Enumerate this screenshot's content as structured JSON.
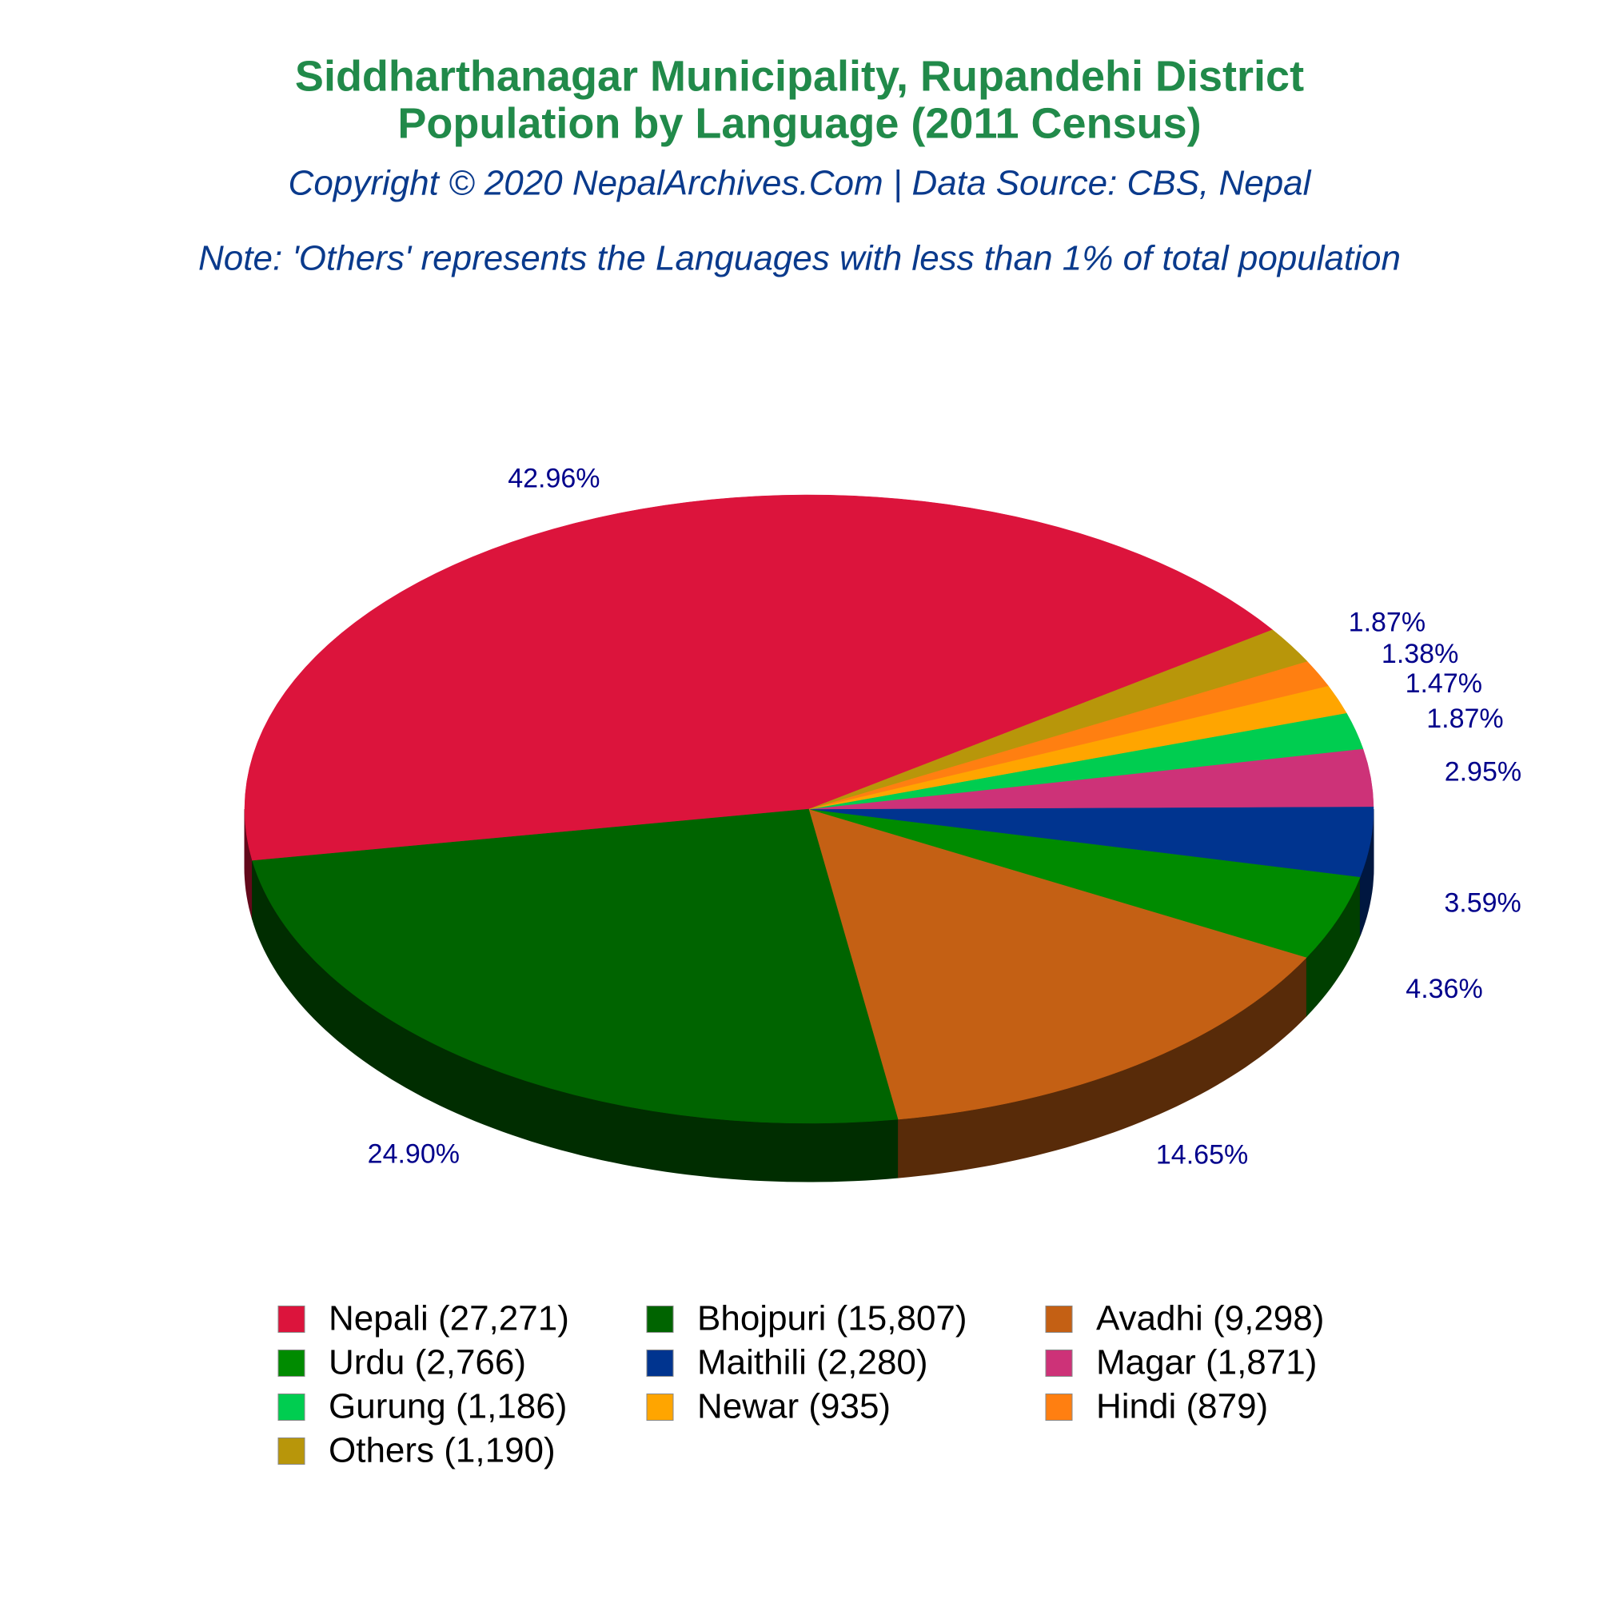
{
  "chart_data": {
    "type": "pie3d",
    "title": "Siddharthanagar Municipality, Rupandehi District",
    "subtitle": "Population by Language (2011 Census)",
    "source": "Copyright © 2020 NepalArchives.Com | Data Source: CBS, Nepal",
    "note": "Note: 'Others' represents the Languages with less than 1% of total population",
    "categories": [
      "Nepali (27,271)",
      "Bhojpuri (15,807)",
      "Avadhi (9,298)",
      "Urdu (2,766)",
      "Maithili (2,280)",
      "Magar (1,871)",
      "Gurung (1,186)",
      "Newar (935)",
      "Hindi (879)",
      "Others (1,190)"
    ],
    "values": [
      42.96,
      24.9,
      14.65,
      4.36,
      3.59,
      2.95,
      1.87,
      1.47,
      1.38,
      1.87
    ],
    "value_labels": [
      "42.96%",
      "24.90%",
      "14.65%",
      "4.36%",
      "3.59%",
      "2.95%",
      "1.87%",
      "1.47%",
      "1.38%",
      "1.87%"
    ],
    "colors": [
      "#dc143c",
      "#006400",
      "#c46014",
      "#008b00",
      "#00348f",
      "#cd3278",
      "#00cd50",
      "#ffa500",
      "#ff7f11",
      "#b8960a"
    ]
  }
}
